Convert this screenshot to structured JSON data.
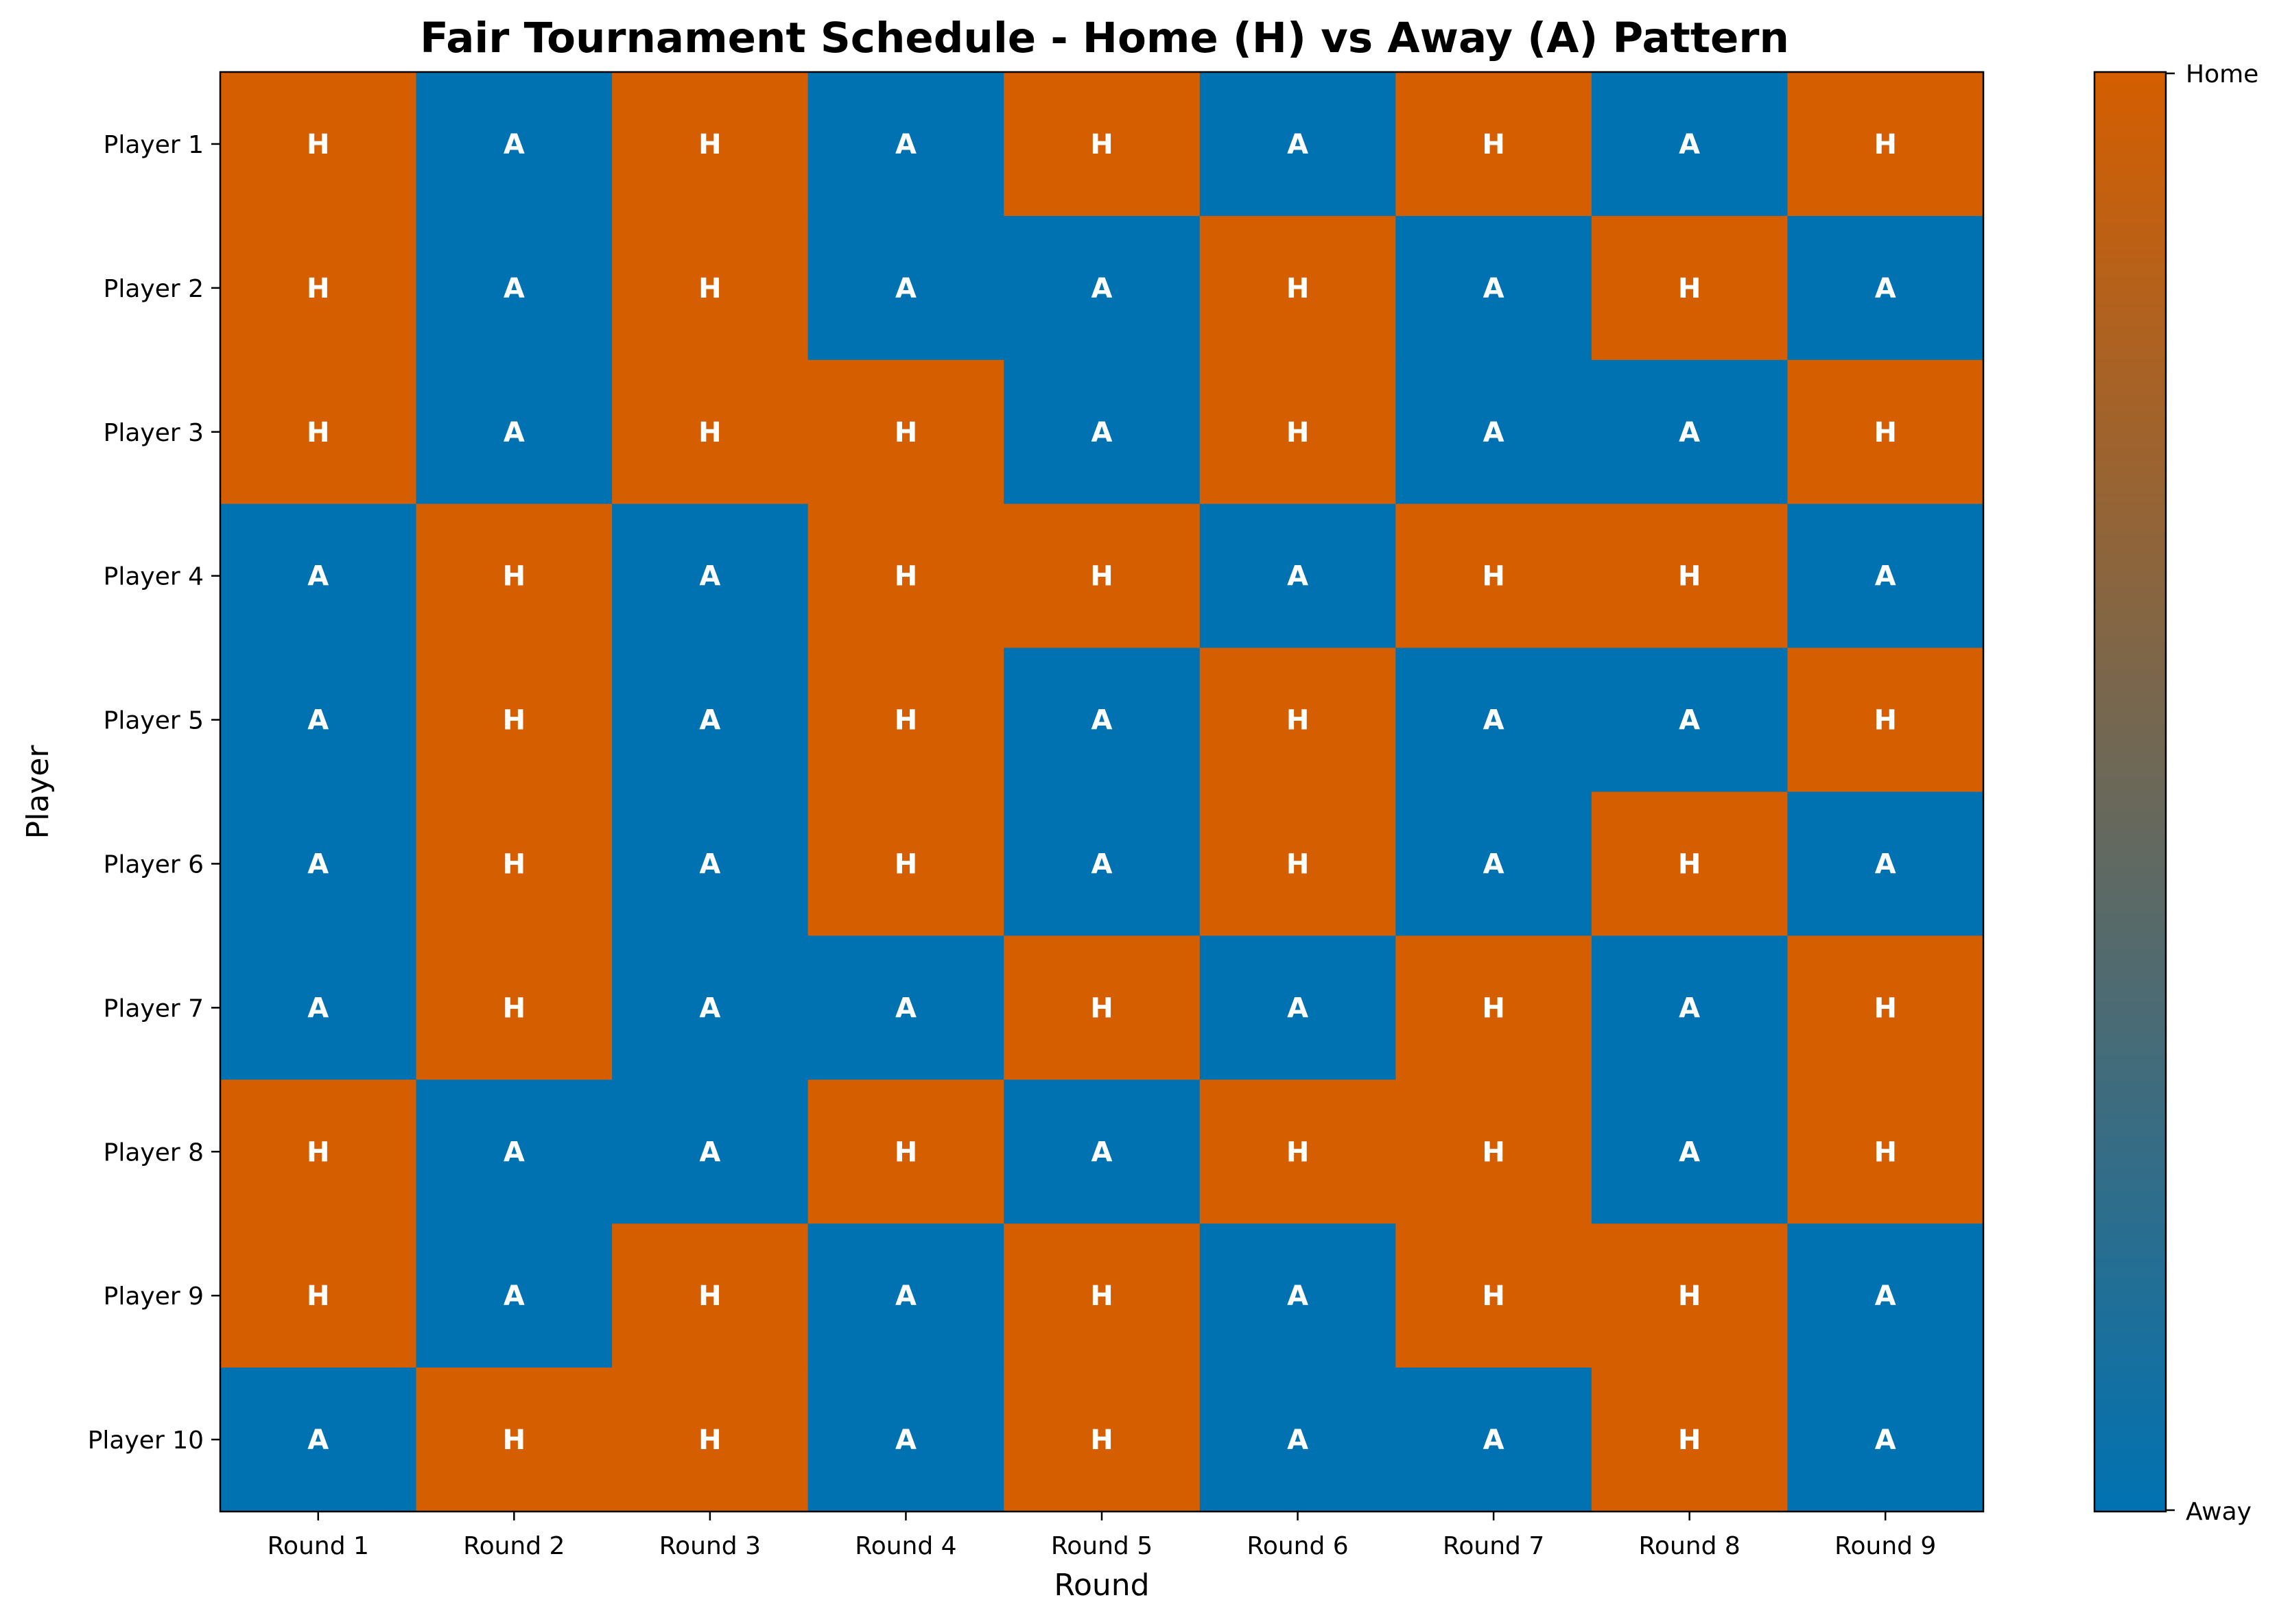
{
  "chart_data": {
    "type": "heatmap",
    "title": "Fair Tournament Schedule - Home (H) vs Away (A) Pattern",
    "xlabel": "Round",
    "ylabel": "Player",
    "x_categories": [
      "Round 1",
      "Round 2",
      "Round 3",
      "Round 4",
      "Round 5",
      "Round 6",
      "Round 7",
      "Round 8",
      "Round 9"
    ],
    "y_categories": [
      "Player 1",
      "Player 2",
      "Player 3",
      "Player 4",
      "Player 5",
      "Player 6",
      "Player 7",
      "Player 8",
      "Player 9",
      "Player 10"
    ],
    "values": [
      [
        "H",
        "A",
        "H",
        "A",
        "H",
        "A",
        "H",
        "A",
        "H"
      ],
      [
        "H",
        "A",
        "H",
        "A",
        "A",
        "H",
        "A",
        "H",
        "A"
      ],
      [
        "H",
        "A",
        "H",
        "H",
        "A",
        "H",
        "A",
        "A",
        "H"
      ],
      [
        "A",
        "H",
        "A",
        "H",
        "H",
        "A",
        "H",
        "H",
        "A"
      ],
      [
        "A",
        "H",
        "A",
        "H",
        "A",
        "H",
        "A",
        "A",
        "H"
      ],
      [
        "A",
        "H",
        "A",
        "H",
        "A",
        "H",
        "A",
        "H",
        "A"
      ],
      [
        "A",
        "H",
        "A",
        "A",
        "H",
        "A",
        "H",
        "A",
        "H"
      ],
      [
        "H",
        "A",
        "A",
        "H",
        "A",
        "H",
        "H",
        "A",
        "H"
      ],
      [
        "H",
        "A",
        "H",
        "A",
        "H",
        "A",
        "H",
        "H",
        "A"
      ],
      [
        "A",
        "H",
        "H",
        "A",
        "H",
        "A",
        "A",
        "H",
        "A"
      ]
    ],
    "colorbar": {
      "top_label": "Home",
      "bottom_label": "Away",
      "home_color": "#D55E00",
      "away_color": "#0072B2"
    },
    "grid": false,
    "legend": "none"
  }
}
